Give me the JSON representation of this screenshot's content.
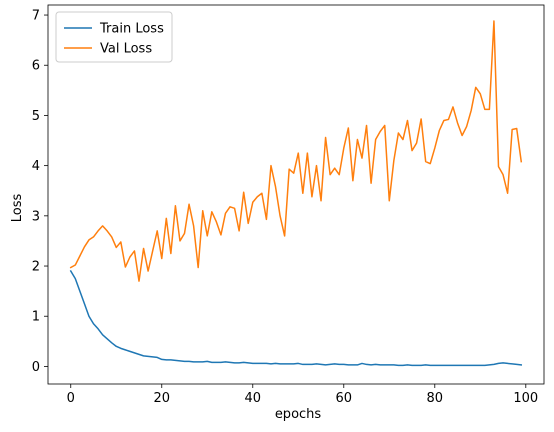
{
  "chart_data": {
    "type": "line",
    "xlabel": "epochs",
    "ylabel": "Loss",
    "xlim": [
      -5,
      104
    ],
    "ylim": [
      -0.35,
      7.2
    ],
    "xticks": [
      0,
      20,
      40,
      60,
      80,
      100
    ],
    "yticks": [
      0,
      1,
      2,
      3,
      4,
      5,
      6,
      7
    ],
    "grid": false,
    "legend_position": "top-left",
    "series": [
      {
        "name": "Train Loss",
        "color": "#1f77b4",
        "x": [
          0,
          1,
          2,
          3,
          4,
          5,
          6,
          7,
          8,
          9,
          10,
          11,
          12,
          13,
          14,
          15,
          16,
          17,
          18,
          19,
          20,
          21,
          22,
          23,
          24,
          25,
          26,
          27,
          28,
          29,
          30,
          31,
          32,
          33,
          34,
          35,
          36,
          37,
          38,
          39,
          40,
          41,
          42,
          43,
          44,
          45,
          46,
          47,
          48,
          49,
          50,
          51,
          52,
          53,
          54,
          55,
          56,
          57,
          58,
          59,
          60,
          61,
          62,
          63,
          64,
          65,
          66,
          67,
          68,
          69,
          70,
          71,
          72,
          73,
          74,
          75,
          76,
          77,
          78,
          79,
          80,
          81,
          82,
          83,
          84,
          85,
          86,
          87,
          88,
          89,
          90,
          91,
          92,
          93,
          94,
          95,
          96,
          97,
          98,
          99
        ],
        "values": [
          1.9,
          1.75,
          1.5,
          1.25,
          1.0,
          0.85,
          0.75,
          0.63,
          0.55,
          0.47,
          0.4,
          0.36,
          0.33,
          0.3,
          0.27,
          0.24,
          0.21,
          0.2,
          0.19,
          0.18,
          0.14,
          0.13,
          0.13,
          0.12,
          0.11,
          0.1,
          0.1,
          0.09,
          0.09,
          0.09,
          0.1,
          0.08,
          0.08,
          0.08,
          0.09,
          0.08,
          0.07,
          0.07,
          0.08,
          0.07,
          0.06,
          0.06,
          0.06,
          0.06,
          0.05,
          0.06,
          0.05,
          0.05,
          0.05,
          0.05,
          0.06,
          0.04,
          0.04,
          0.04,
          0.05,
          0.04,
          0.03,
          0.04,
          0.05,
          0.04,
          0.04,
          0.03,
          0.03,
          0.03,
          0.06,
          0.04,
          0.03,
          0.04,
          0.03,
          0.03,
          0.03,
          0.03,
          0.02,
          0.02,
          0.03,
          0.02,
          0.02,
          0.02,
          0.03,
          0.02,
          0.02,
          0.02,
          0.02,
          0.02,
          0.02,
          0.02,
          0.02,
          0.02,
          0.02,
          0.02,
          0.02,
          0.02,
          0.03,
          0.04,
          0.06,
          0.07,
          0.06,
          0.05,
          0.04,
          0.03
        ]
      },
      {
        "name": "Val Loss",
        "color": "#ff7f0e",
        "x": [
          0,
          1,
          2,
          3,
          4,
          5,
          6,
          7,
          8,
          9,
          10,
          11,
          12,
          13,
          14,
          15,
          16,
          17,
          18,
          19,
          20,
          21,
          22,
          23,
          24,
          25,
          26,
          27,
          28,
          29,
          30,
          31,
          32,
          33,
          34,
          35,
          36,
          37,
          38,
          39,
          40,
          41,
          42,
          43,
          44,
          45,
          46,
          47,
          48,
          49,
          50,
          51,
          52,
          53,
          54,
          55,
          56,
          57,
          58,
          59,
          60,
          61,
          62,
          63,
          64,
          65,
          66,
          67,
          68,
          69,
          70,
          71,
          72,
          73,
          74,
          75,
          76,
          77,
          78,
          79,
          80,
          81,
          82,
          83,
          84,
          85,
          86,
          87,
          88,
          89,
          90,
          91,
          92,
          93,
          94,
          95,
          96,
          97,
          98,
          99
        ],
        "values": [
          1.97,
          2.02,
          2.2,
          2.38,
          2.52,
          2.58,
          2.7,
          2.8,
          2.7,
          2.58,
          2.37,
          2.48,
          1.98,
          2.18,
          2.3,
          1.7,
          2.35,
          1.9,
          2.3,
          2.7,
          2.15,
          2.95,
          2.25,
          3.2,
          2.5,
          2.65,
          3.23,
          2.8,
          1.97,
          3.1,
          2.6,
          3.08,
          2.88,
          2.62,
          3.05,
          3.18,
          3.15,
          2.7,
          3.47,
          2.85,
          3.27,
          3.38,
          3.45,
          2.93,
          4.0,
          3.58,
          3.0,
          2.6,
          3.93,
          3.85,
          4.25,
          3.45,
          4.25,
          3.38,
          4.0,
          3.3,
          4.56,
          3.82,
          3.95,
          3.82,
          4.35,
          4.75,
          3.7,
          4.52,
          4.15,
          4.8,
          3.65,
          4.52,
          4.68,
          4.8,
          3.3,
          4.1,
          4.65,
          4.52,
          4.9,
          4.3,
          4.45,
          4.93,
          4.08,
          4.04,
          4.35,
          4.7,
          4.9,
          4.92,
          5.17,
          4.85,
          4.6,
          4.78,
          5.1,
          5.56,
          5.43,
          5.12,
          5.12,
          6.88,
          3.98,
          3.82,
          3.45,
          4.72,
          4.74,
          4.08
        ]
      }
    ]
  }
}
